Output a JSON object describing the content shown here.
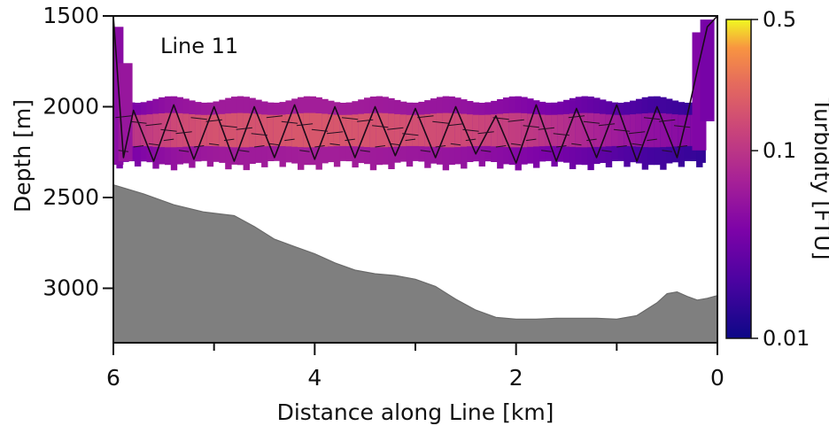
{
  "chart_data": {
    "type": "heatmap",
    "annotation": "Line 11",
    "xlabel": "Distance along Line [km]",
    "ylabel": "Depth [m]",
    "xlim": [
      6,
      0
    ],
    "ylim": [
      1500,
      3300
    ],
    "x_reversed": true,
    "y_reversed": true,
    "x_ticks_major": [
      6,
      4,
      2,
      0
    ],
    "x_ticks_minor": [
      5,
      3,
      1
    ],
    "y_ticks": [
      1500,
      2000,
      2500,
      3000
    ],
    "x_tick_labels": [
      "6",
      "4",
      "2",
      "0"
    ],
    "y_tick_labels": [
      "1500",
      "2000",
      "2500",
      "3000"
    ],
    "colorbar": {
      "label": "Turbidity [FTU]",
      "scale": "log",
      "range": [
        0.01,
        0.5
      ],
      "ticks": [
        0.01,
        0.1,
        0.5
      ],
      "tick_labels": [
        "0.01",
        "0.1",
        "0.5"
      ],
      "colormap": "plasma"
    },
    "seafloor": {
      "color": "#7f7f7f",
      "x": [
        6.0,
        5.7,
        5.4,
        5.1,
        4.8,
        4.6,
        4.4,
        4.2,
        4.0,
        3.8,
        3.6,
        3.4,
        3.2,
        3.0,
        2.8,
        2.6,
        2.4,
        2.2,
        2.0,
        1.8,
        1.6,
        1.4,
        1.2,
        1.0,
        0.8,
        0.6,
        0.5,
        0.4,
        0.3,
        0.2,
        0.1,
        0.0
      ],
      "depth": [
        2430,
        2480,
        2540,
        2580,
        2600,
        2660,
        2730,
        2770,
        2810,
        2860,
        2900,
        2920,
        2930,
        2950,
        2990,
        3060,
        3120,
        3160,
        3170,
        3170,
        3165,
        3165,
        3165,
        3170,
        3150,
        3080,
        3030,
        3020,
        3045,
        3065,
        3055,
        3040
      ]
    },
    "turbidity_layer": {
      "x_min": 5.97,
      "x_max": 0.12,
      "core_top_depth": 2040,
      "core_bottom_depth": 2220,
      "plume_top_depth": 1960,
      "plume_bottom_depth": 2310,
      "values_ftu": [
        0.1,
        0.14,
        0.16,
        0.16,
        0.17,
        0.17,
        0.16,
        0.15,
        0.14,
        0.12,
        0.1,
        0.08,
        0.06,
        0.05,
        0.045,
        0.04
      ],
      "value_x": [
        5.8,
        5.4,
        5.0,
        4.6,
        4.2,
        3.8,
        3.4,
        3.0,
        2.6,
        2.2,
        1.8,
        1.4,
        1.0,
        0.7,
        0.4,
        0.15
      ]
    },
    "tow_yo_track": {
      "x": [
        6.0,
        5.9,
        5.8,
        5.6,
        5.4,
        5.2,
        5.0,
        4.8,
        4.6,
        4.4,
        4.2,
        4.0,
        3.8,
        3.6,
        3.4,
        3.2,
        3.0,
        2.8,
        2.6,
        2.4,
        2.2,
        2.0,
        1.8,
        1.6,
        1.4,
        1.2,
        1.0,
        0.8,
        0.6,
        0.4,
        0.3,
        0.2,
        0.1,
        0.0
      ],
      "depth": [
        1500,
        2280,
        2020,
        2300,
        1990,
        2290,
        2000,
        2300,
        2000,
        2280,
        1990,
        2290,
        2000,
        2280,
        2000,
        2270,
        2010,
        2280,
        2000,
        2260,
        2050,
        2310,
        1990,
        2300,
        2010,
        2280,
        1990,
        2300,
        2000,
        2280,
        2050,
        1800,
        1560,
        1500
      ]
    }
  }
}
